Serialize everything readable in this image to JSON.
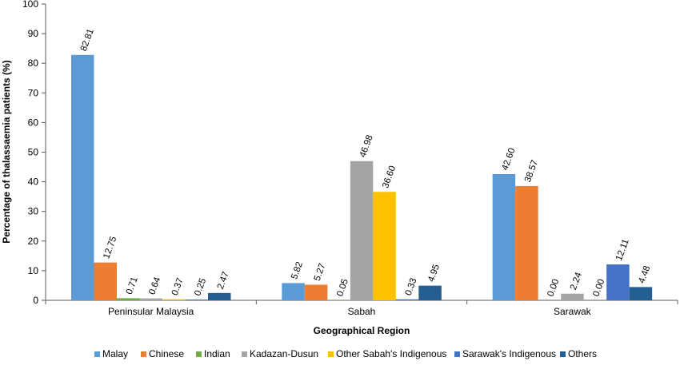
{
  "chart_data": {
    "type": "bar",
    "xlabel": "Geographical Region",
    "ylabel": "Percentage of thalassaemia patients (%)",
    "ylim": [
      0,
      100
    ],
    "yticks": [
      0,
      10,
      20,
      30,
      40,
      50,
      60,
      70,
      80,
      90,
      100
    ],
    "grid": false,
    "legend_position": "bottom",
    "categories": [
      "Peninsular Malaysia",
      "Sabah",
      "Sarawak"
    ],
    "series": [
      {
        "name": "Malay",
        "color": "#5b9bd5",
        "values": [
          82.81,
          5.82,
          42.6
        ],
        "labels": [
          "82.81",
          "5.82",
          "42.60"
        ]
      },
      {
        "name": "Chinese",
        "color": "#ed7d31",
        "values": [
          12.75,
          5.27,
          38.57
        ],
        "labels": [
          "12.75",
          "5.27",
          "38.57"
        ]
      },
      {
        "name": "Indian",
        "color": "#70ad47",
        "values": [
          0.71,
          0.05,
          0.0
        ],
        "labels": [
          "0.71",
          "0.05",
          "0.00"
        ]
      },
      {
        "name": "Kadazan-Dusun",
        "color": "#a5a5a5",
        "values": [
          0.64,
          46.98,
          2.24
        ],
        "labels": [
          "0.64",
          "46.98",
          "2.24"
        ]
      },
      {
        "name": "Other Sabah's Indigenous",
        "color": "#ffc000",
        "values": [
          0.37,
          36.6,
          0.0
        ],
        "labels": [
          "0.37",
          "36.60",
          "0.00"
        ]
      },
      {
        "name": "Sarawak's Indigenous",
        "color": "#4472c4",
        "values": [
          0.25,
          0.33,
          12.11
        ],
        "labels": [
          "0.25",
          "0.33",
          "12.11"
        ]
      },
      {
        "name": "Others",
        "color": "#255e91",
        "values": [
          2.47,
          4.95,
          4.48
        ],
        "labels": [
          "2.47",
          "4.95",
          "4.48"
        ]
      }
    ]
  }
}
